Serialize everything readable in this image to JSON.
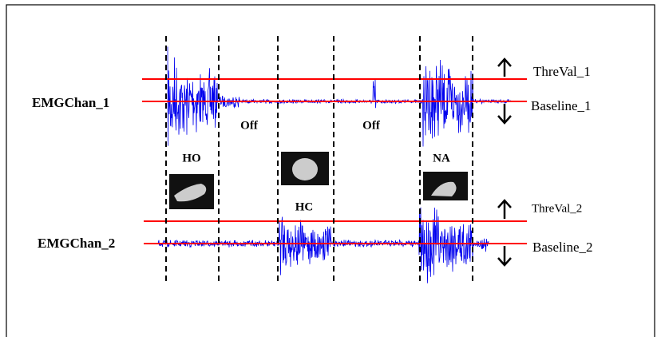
{
  "channels": [
    {
      "label": "EMGChan_1",
      "threshold": "ThreVal_1",
      "baseline": "Baseline_1"
    },
    {
      "label": "EMGChan_2",
      "threshold": "ThreVal_2",
      "baseline": "Baseline_2"
    }
  ],
  "states": [
    {
      "label": "HO"
    },
    {
      "label": "Off"
    },
    {
      "label": "Off"
    },
    {
      "label": "HC"
    },
    {
      "label": "NA"
    }
  ]
}
